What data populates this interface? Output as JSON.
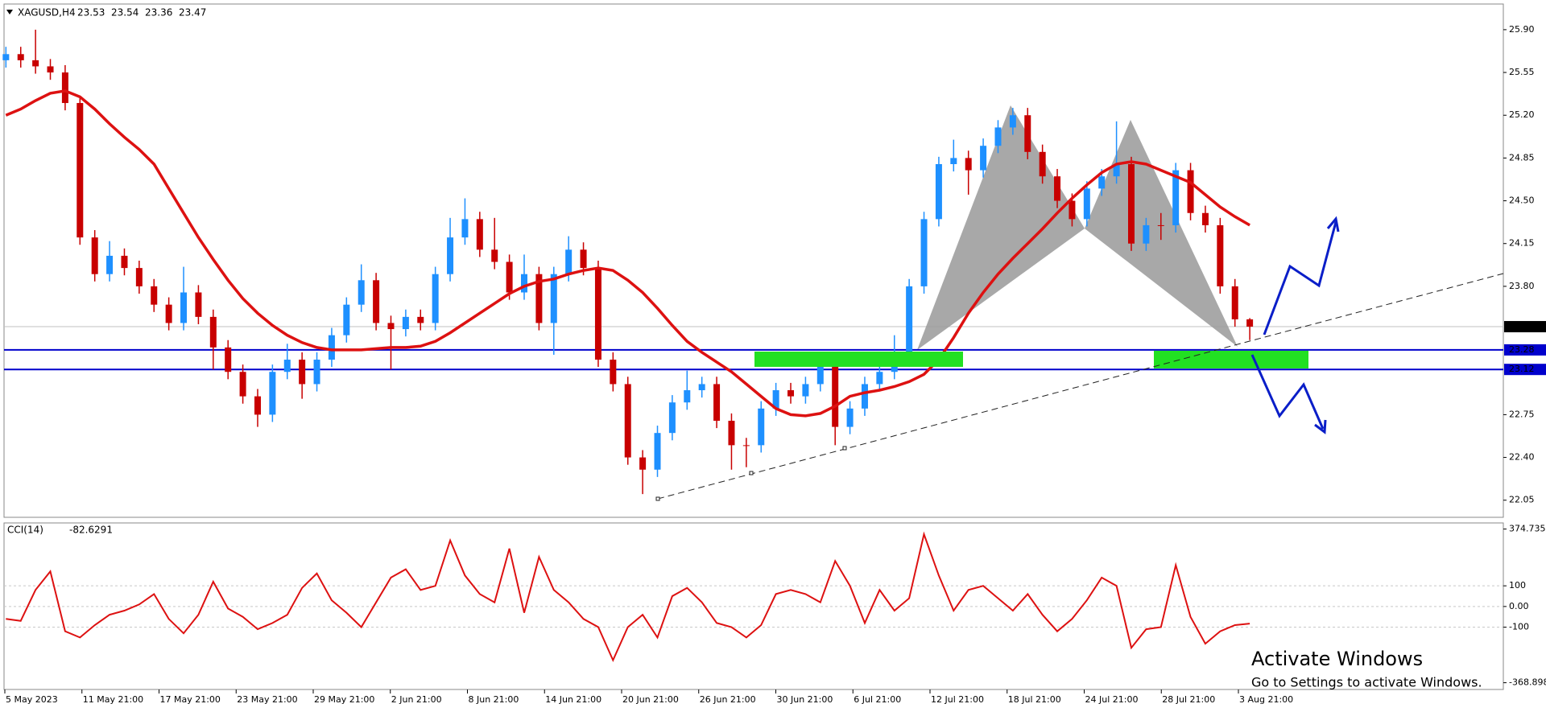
{
  "chart_data": [
    {
      "type": "candlestick",
      "symbol": "XAGUSD,H4",
      "up_color": "#1e90ff",
      "down_color": "#c80000",
      "open": [
        25.65,
        25.7,
        25.65,
        25.6,
        25.55,
        25.3,
        24.2,
        23.9,
        24.05,
        23.95,
        23.8,
        23.65,
        23.5,
        23.75,
        23.55,
        23.3,
        23.1,
        22.9,
        22.75,
        23.1,
        23.2,
        23.0,
        23.2,
        23.4,
        23.65,
        23.85,
        23.5,
        23.45,
        23.55,
        23.5,
        23.9,
        24.2,
        24.35,
        24.1,
        24.0,
        23.75,
        23.9,
        23.5,
        23.9,
        24.1,
        23.95,
        23.2,
        23.0,
        22.4,
        22.3,
        22.6,
        22.85,
        22.95,
        23.0,
        22.7,
        22.5,
        22.5,
        22.8,
        22.95,
        22.9,
        23.0,
        23.15,
        22.65,
        22.8,
        23.0,
        23.1,
        23.2,
        23.8,
        24.35,
        24.8,
        24.85,
        24.75,
        24.95,
        25.1,
        25.2,
        24.9,
        24.7,
        24.5,
        24.35,
        24.6,
        24.7,
        24.8,
        24.15,
        24.3,
        24.3,
        24.75,
        24.4,
        24.3,
        23.8,
        23.53
      ],
      "high": [
        25.76,
        25.76,
        25.9,
        25.66,
        25.61,
        25.36,
        24.26,
        24.17,
        24.11,
        24.01,
        23.86,
        23.71,
        23.96,
        23.81,
        23.61,
        23.36,
        23.16,
        22.96,
        23.16,
        23.33,
        23.26,
        23.26,
        23.46,
        23.71,
        23.98,
        23.91,
        23.56,
        23.61,
        23.61,
        23.96,
        24.36,
        24.52,
        24.41,
        24.36,
        24.06,
        24.06,
        23.96,
        23.96,
        24.21,
        24.16,
        24.01,
        23.26,
        23.06,
        22.46,
        22.66,
        22.91,
        23.11,
        23.06,
        23.06,
        22.76,
        22.56,
        22.86,
        23.01,
        23.01,
        23.06,
        23.25,
        23.21,
        22.86,
        23.06,
        23.16,
        23.4,
        23.86,
        24.41,
        24.86,
        25.0,
        24.91,
        25.01,
        25.16,
        25.26,
        25.26,
        24.96,
        24.76,
        24.56,
        24.66,
        24.76,
        25.15,
        24.86,
        24.36,
        24.4,
        24.81,
        24.81,
        24.46,
        24.36,
        23.86,
        23.54
      ],
      "low": [
        25.59,
        25.59,
        25.54,
        25.49,
        25.24,
        24.14,
        23.84,
        23.84,
        23.89,
        23.74,
        23.59,
        23.44,
        23.44,
        23.49,
        23.12,
        23.04,
        22.84,
        22.65,
        22.69,
        23.04,
        22.88,
        22.94,
        23.14,
        23.34,
        23.59,
        23.44,
        23.12,
        23.39,
        23.44,
        23.44,
        23.84,
        24.14,
        24.04,
        23.94,
        23.69,
        23.69,
        23.44,
        23.24,
        23.84,
        23.89,
        23.14,
        22.94,
        22.34,
        22.1,
        22.24,
        22.54,
        22.79,
        22.89,
        22.64,
        22.3,
        22.32,
        22.44,
        22.74,
        22.84,
        22.84,
        22.94,
        22.5,
        22.59,
        22.74,
        22.94,
        23.04,
        23.14,
        23.74,
        24.29,
        24.74,
        24.55,
        24.69,
        24.89,
        25.04,
        24.84,
        24.64,
        24.44,
        24.29,
        24.29,
        24.54,
        24.64,
        24.09,
        24.09,
        24.18,
        24.24,
        24.34,
        24.24,
        23.74,
        23.47,
        23.36
      ],
      "close": [
        25.7,
        25.65,
        25.6,
        25.55,
        25.3,
        24.2,
        23.9,
        24.05,
        23.95,
        23.8,
        23.65,
        23.5,
        23.75,
        23.55,
        23.3,
        23.1,
        22.9,
        22.75,
        23.1,
        23.2,
        23.0,
        23.2,
        23.4,
        23.65,
        23.85,
        23.5,
        23.45,
        23.55,
        23.5,
        23.9,
        24.2,
        24.35,
        24.1,
        24.0,
        23.75,
        23.9,
        23.5,
        23.9,
        24.1,
        23.95,
        23.2,
        23.0,
        22.4,
        22.3,
        22.6,
        22.85,
        22.95,
        23.0,
        22.7,
        22.5,
        22.5,
        22.8,
        22.95,
        22.9,
        23.0,
        23.15,
        22.65,
        22.8,
        23.0,
        23.1,
        23.2,
        23.8,
        24.35,
        24.8,
        24.85,
        24.75,
        24.95,
        25.1,
        25.2,
        24.9,
        24.7,
        24.5,
        24.35,
        24.6,
        24.7,
        24.8,
        24.15,
        24.3,
        24.3,
        24.75,
        24.4,
        24.3,
        23.8,
        23.53,
        23.47
      ],
      "ma": {
        "color": "#dd1111",
        "values": [
          25.2,
          25.25,
          25.32,
          25.38,
          25.4,
          25.35,
          25.25,
          25.13,
          25.02,
          24.92,
          24.8,
          24.6,
          24.4,
          24.2,
          24.02,
          23.85,
          23.7,
          23.58,
          23.48,
          23.4,
          23.34,
          23.3,
          23.28,
          23.28,
          23.28,
          23.29,
          23.3,
          23.3,
          23.31,
          23.35,
          23.42,
          23.5,
          23.58,
          23.66,
          23.74,
          23.8,
          23.84,
          23.86,
          23.9,
          23.93,
          23.95,
          23.93,
          23.85,
          23.75,
          23.62,
          23.48,
          23.35,
          23.26,
          23.18,
          23.1,
          23.0,
          22.9,
          22.8,
          22.75,
          22.74,
          22.76,
          22.82,
          22.9,
          22.93,
          22.95,
          22.98,
          23.02,
          23.08,
          23.2,
          23.38,
          23.58,
          23.75,
          23.9,
          24.03,
          24.15,
          24.27,
          24.4,
          24.52,
          24.63,
          24.73,
          24.8,
          24.82,
          24.8,
          24.75,
          24.7,
          24.65,
          24.55,
          24.45,
          24.37,
          24.3
        ]
      },
      "levels": [
        23.28,
        23.12
      ],
      "level_color": "#0000cc",
      "ylim": [
        21.91,
        26.11
      ],
      "yticks": [
        22.05,
        {
          "value": 22.4,
          "label": "22.40"
        },
        22.75,
        {
          "value": 23.8,
          "label": "23.80"
        },
        24.15,
        {
          "value": 24.5,
          "label": "24.50"
        },
        24.85,
        {
          "value": 25.2,
          "label": "25.20"
        },
        25.55,
        {
          "value": 25.9,
          "label": "25.90"
        }
      ]
    },
    {
      "type": "line",
      "name": "CCI(14)",
      "color": "#dd1111",
      "values": [
        -60,
        -70,
        80,
        170,
        -120,
        -150,
        -90,
        -40,
        -20,
        10,
        60,
        -60,
        -130,
        -40,
        120,
        -10,
        -50,
        -110,
        -80,
        -40,
        90,
        160,
        30,
        -30,
        -100,
        20,
        140,
        180,
        80,
        100,
        320,
        150,
        60,
        20,
        280,
        -30,
        240,
        80,
        20,
        -60,
        -100,
        -260,
        -100,
        -40,
        -150,
        50,
        90,
        20,
        -80,
        -100,
        -150,
        -90,
        60,
        80,
        60,
        20,
        220,
        100,
        -80,
        80,
        -20,
        40,
        350,
        150,
        -20,
        80,
        100,
        40,
        -20,
        60,
        -40,
        -120,
        -60,
        30,
        140,
        100,
        -200,
        -110,
        -100,
        200,
        -50,
        -180,
        -120,
        -90,
        -82.6291
      ],
      "ylim": [
        -368.898,
        374.735
      ],
      "yticks": [
        -368.898,
        -100,
        {
          "value": 0,
          "label": "0.00"
        },
        100,
        374.735
      ],
      "x_labels": [
        "5 May 2023",
        "11 May 21:00",
        "17 May 21:00",
        "23 May 21:00",
        "29 May 21:00",
        "2 Jun 21:00",
        "8 Jun 21:00",
        "14 Jun 21:00",
        "20 Jun 21:00",
        "26 Jun 21:00",
        "30 Jun 21:00",
        "6 Jul 21:00",
        "12 Jul 21:00",
        "18 Jul 21:00",
        "24 Jul 21:00",
        "28 Jul 21:00",
        "3 Aug 21:00"
      ]
    }
  ],
  "watermark": {
    "title": "Activate Windows",
    "subtitle": "Go to Settings to activate Windows."
  }
}
